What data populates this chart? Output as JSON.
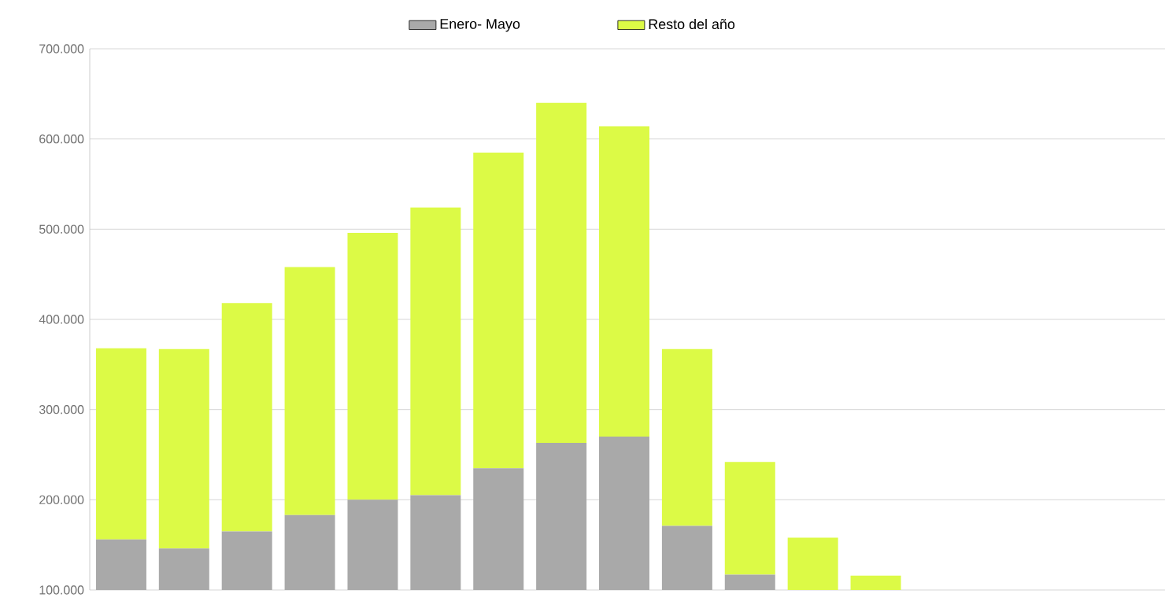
{
  "chart_data": {
    "type": "bar",
    "stacked": true,
    "categories": [
      null,
      null,
      null,
      null,
      null,
      null,
      null,
      null,
      null,
      null,
      null,
      null,
      null
    ],
    "series": [
      {
        "name": "Enero- Mayo",
        "color": "#a9a9a9",
        "values": [
          156000,
          146000,
          165000,
          183000,
          200000,
          205000,
          235000,
          263000,
          270000,
          171000,
          117000,
          null,
          null
        ]
      },
      {
        "name": "Resto del año",
        "color": "#dcfa46",
        "values": [
          212000,
          221000,
          253000,
          275000,
          296000,
          319000,
          350000,
          377000,
          344000,
          196000,
          125000,
          158000,
          116000
        ]
      }
    ],
    "ylim": [
      100000,
      700000
    ],
    "yticks": [
      {
        "value": 100000,
        "label": "100.000"
      },
      {
        "value": 200000,
        "label": "200.000"
      },
      {
        "value": 300000,
        "label": "300.000"
      },
      {
        "value": 400000,
        "label": "400.000"
      },
      {
        "value": 500000,
        "label": "500.000"
      },
      {
        "value": 600000,
        "label": "600.000"
      },
      {
        "value": 700000,
        "label": "700.000"
      }
    ],
    "grid": "y",
    "legend": "top",
    "tick_labels": "y"
  }
}
